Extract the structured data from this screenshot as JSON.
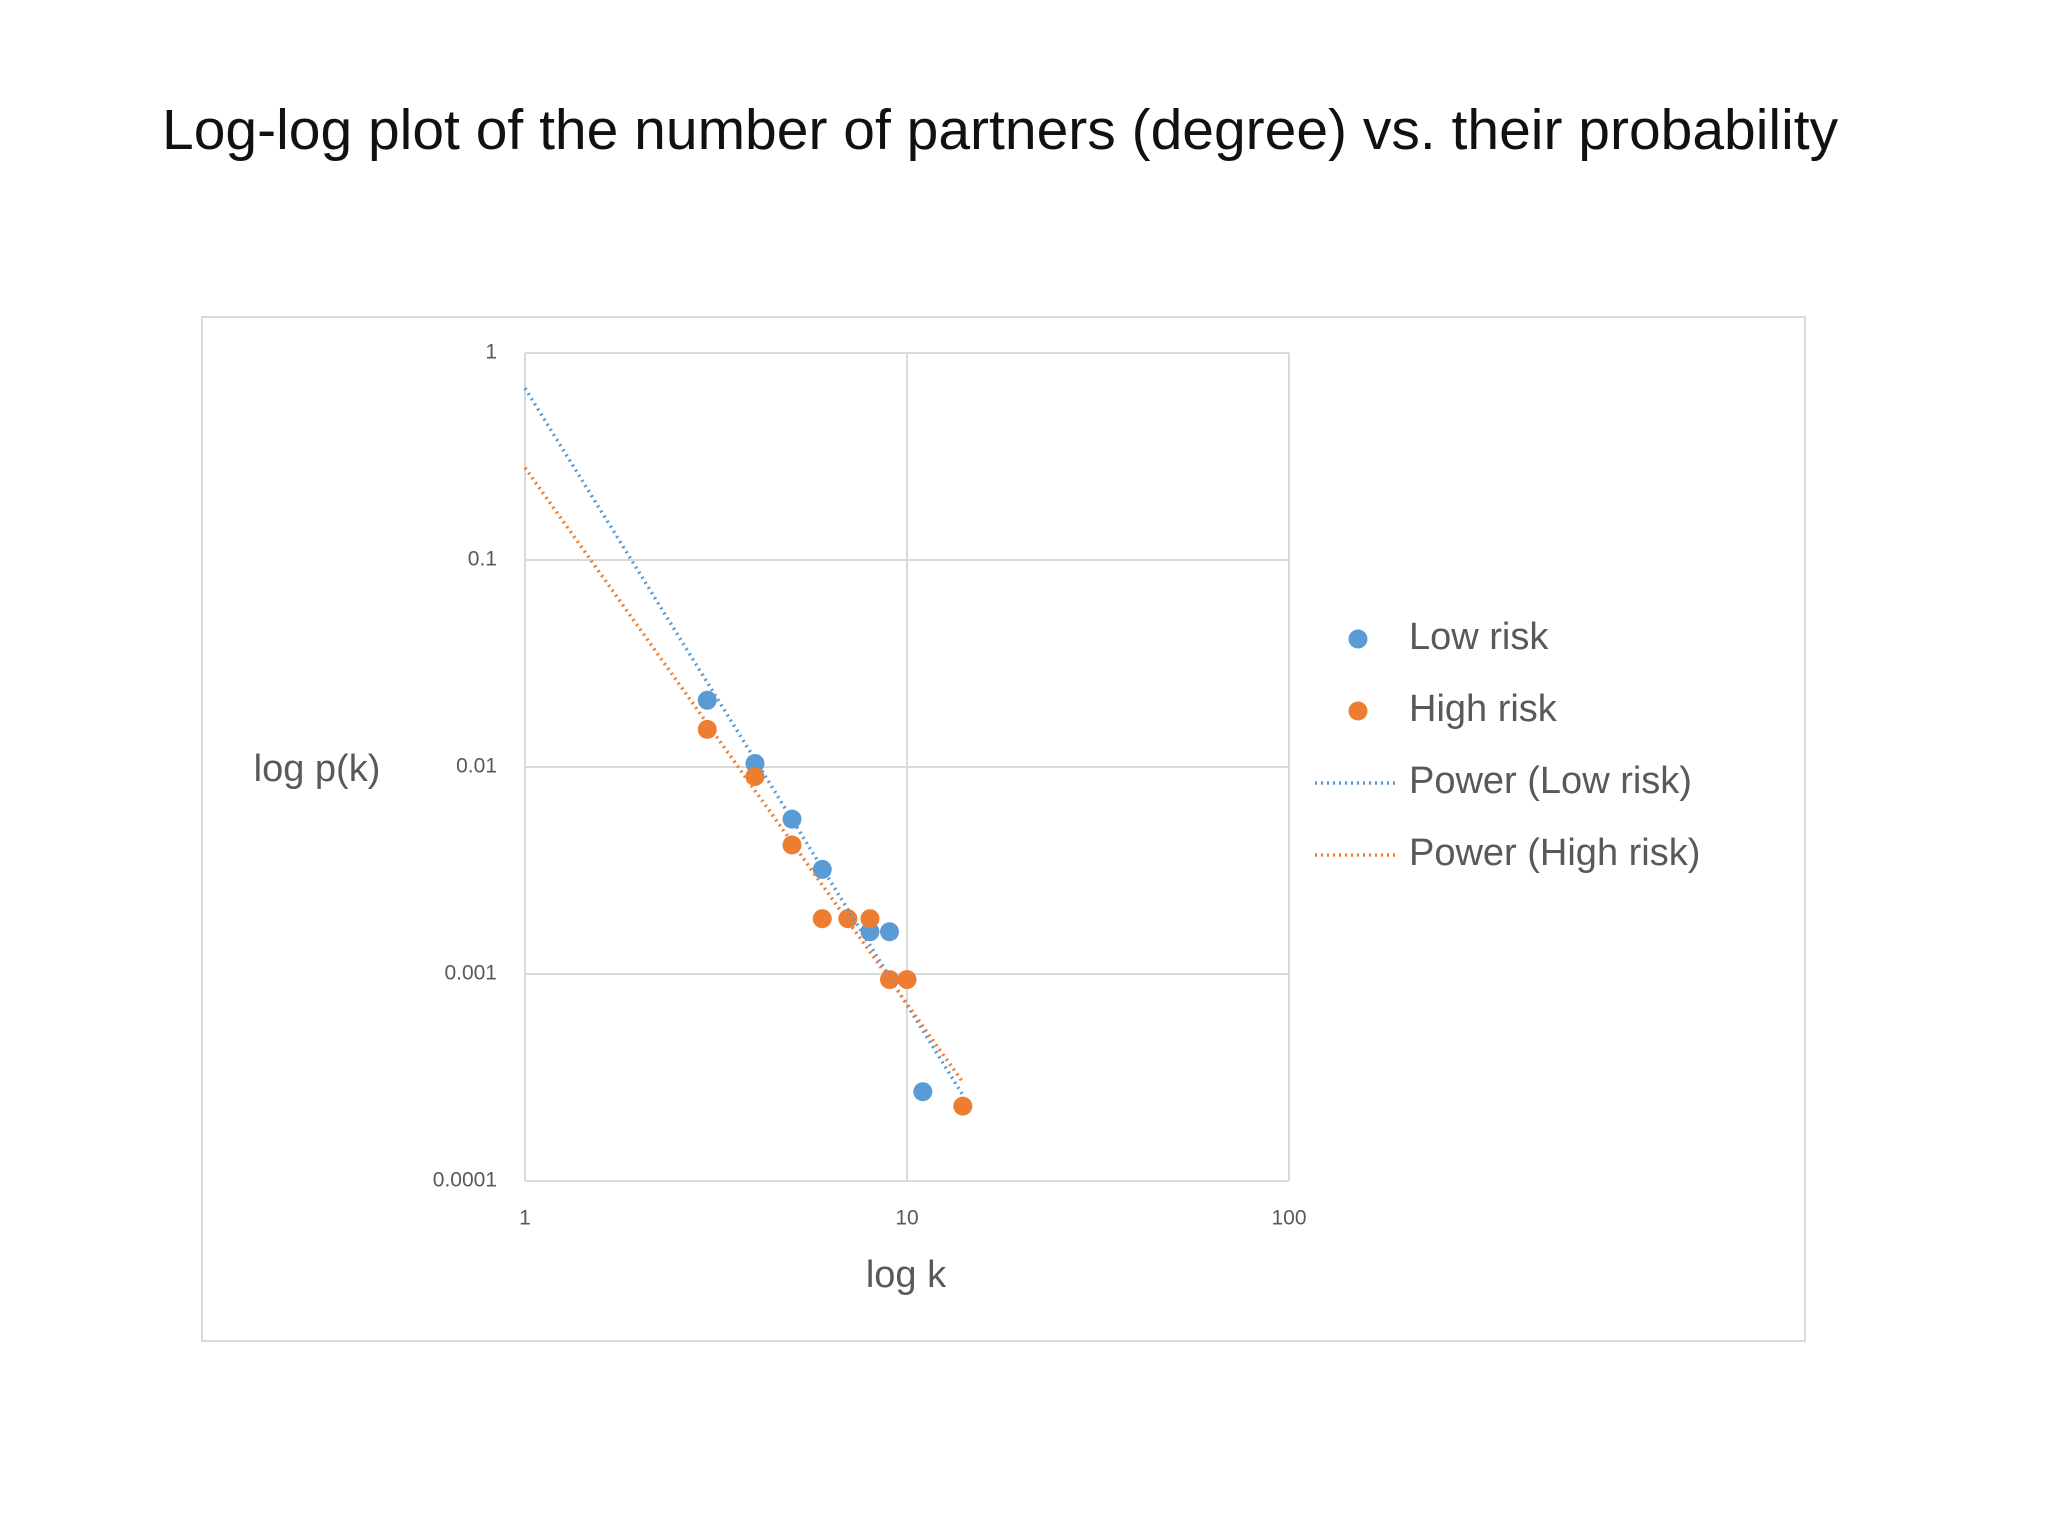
{
  "chart_data": {
    "type": "scatter",
    "title": "Log-log plot of the number of partners (degree) vs. their probability",
    "x_label": "log k",
    "y_label": "log p(k)",
    "xlim": [
      1,
      100
    ],
    "ylim": [
      0.0001,
      1
    ],
    "xticks": [
      1,
      10,
      100
    ],
    "yticks": [
      0.0001,
      0.001,
      0.01,
      0.1,
      1
    ],
    "x_log": true,
    "y_log": true,
    "grid": true,
    "legend": "right",
    "series": [
      {
        "name": "Low risk",
        "mode": "markers",
        "color": "#5b9bd5",
        "x": [
          3,
          4,
          5,
          6,
          8,
          9,
          11
        ],
        "values": [
          0.021,
          0.0104,
          0.0056,
          0.0032,
          0.0016,
          0.0016,
          0.00027
        ]
      },
      {
        "name": "High risk",
        "mode": "markers",
        "color": "#ed7d31",
        "x": [
          3,
          4,
          5,
          6,
          7,
          8,
          9,
          10,
          14
        ],
        "values": [
          0.0152,
          0.009,
          0.0042,
          0.00185,
          0.00185,
          0.00185,
          0.00094,
          0.00094,
          0.00023
        ]
      },
      {
        "name": "Power (Low risk)",
        "mode": "dotted-line",
        "color": "#5b9bd5",
        "x": [
          1,
          14
        ],
        "values": [
          0.676,
          0.00026
        ]
      },
      {
        "name": "Power (High risk)",
        "mode": "dotted-line",
        "color": "#ed7d31",
        "x": [
          1,
          14
        ],
        "values": [
          0.279,
          0.0003
        ]
      }
    ]
  }
}
